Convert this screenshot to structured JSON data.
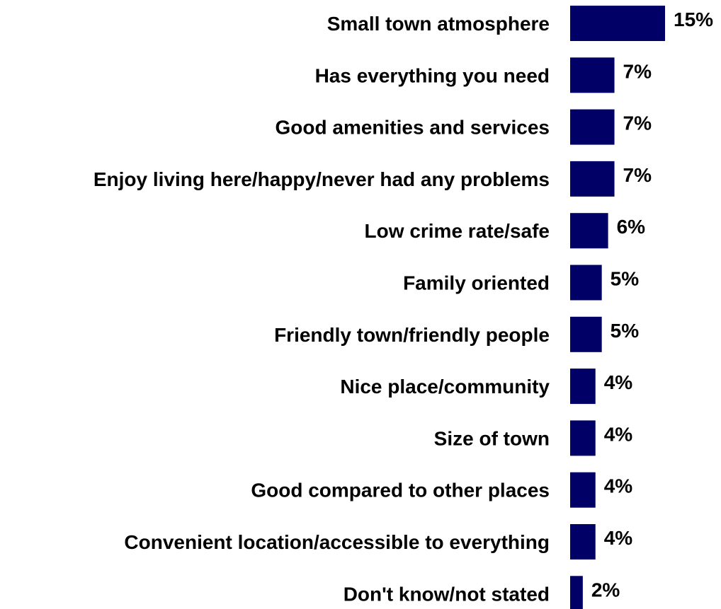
{
  "chart_data": {
    "type": "bar",
    "orientation": "horizontal",
    "categories": [
      "Small town atmosphere",
      "Has everything you need",
      "Good amenities and services",
      "Enjoy living here/happy/never had any problems",
      "Low crime rate/safe",
      "Family oriented",
      "Friendly town/friendly people",
      "Nice place/community",
      "Size of town ",
      "Good compared to other places",
      "Convenient location/accessible to everything",
      "Don't know/not stated"
    ],
    "values": [
      15,
      7,
      7,
      7,
      6,
      5,
      5,
      4,
      4,
      4,
      4,
      2
    ],
    "value_labels": [
      "15%",
      "7%",
      "7%",
      "7%",
      "6%",
      "5%",
      "5%",
      "4%",
      "4%",
      "4%",
      "4%",
      "2%"
    ],
    "title": "",
    "xlabel": "",
    "ylabel": "",
    "xlim": [
      0,
      15
    ],
    "grid": false,
    "legend": "none",
    "bar_color": "#000066"
  }
}
